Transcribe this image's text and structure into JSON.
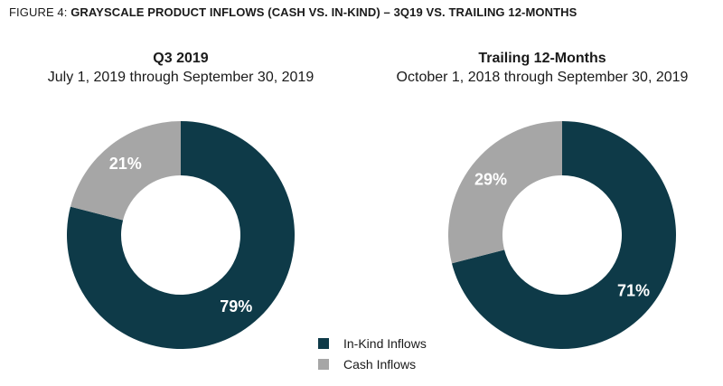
{
  "figure": {
    "prefix": "FIGURE 4: ",
    "title": "GRAYSCALE PRODUCT INFLOWS (CASH VS. IN-KIND) – 3Q19 VS. TRAILING 12-MONTHS"
  },
  "colors": {
    "in_kind": "#0e3a48",
    "cash": "#a6a6a6"
  },
  "chart_data": [
    {
      "type": "pie",
      "title": "Q3 2019",
      "subtitle": "July 1, 2019 through September 30, 2019",
      "categories": [
        "In-Kind Inflows",
        "Cash Inflows"
      ],
      "values": [
        79,
        21
      ],
      "labels": [
        "79%",
        "21%"
      ]
    },
    {
      "type": "pie",
      "title": "Trailing 12-Months",
      "subtitle": "October 1, 2018 through September 30, 2019",
      "categories": [
        "In-Kind Inflows",
        "Cash Inflows"
      ],
      "values": [
        71,
        29
      ],
      "labels": [
        "71%",
        "29%"
      ]
    }
  ],
  "legend": {
    "items": [
      "In-Kind Inflows",
      "Cash Inflows"
    ]
  }
}
